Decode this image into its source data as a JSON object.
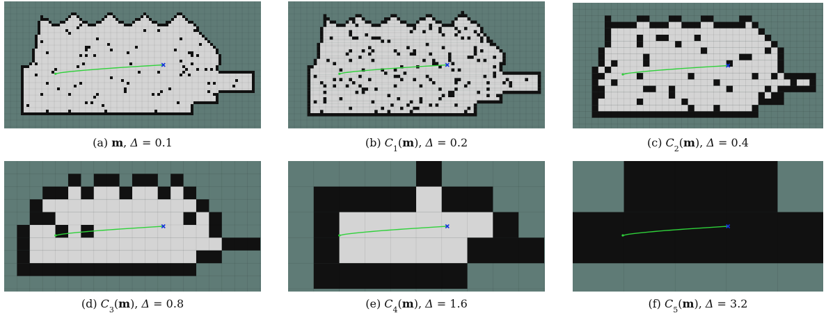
{
  "figure": {
    "panels": [
      {
        "caption": [
          {
            "text": "(a) "
          },
          {
            "text": "m",
            "style": "bold"
          },
          {
            "text": ", "
          },
          {
            "text": "Δ",
            "style": "italic"
          },
          {
            "text": " = 0.1"
          }
        ]
      },
      {
        "caption": [
          {
            "text": "(b) "
          },
          {
            "text": "C",
            "style": "italic"
          },
          {
            "text": "1",
            "style": "sub"
          },
          {
            "text": "("
          },
          {
            "text": "m",
            "style": "bold"
          },
          {
            "text": "), "
          },
          {
            "text": "Δ",
            "style": "italic"
          },
          {
            "text": " = 0.2"
          }
        ]
      },
      {
        "caption": [
          {
            "text": "(c) "
          },
          {
            "text": "C",
            "style": "italic"
          },
          {
            "text": "2",
            "style": "sub"
          },
          {
            "text": "("
          },
          {
            "text": "m",
            "style": "bold"
          },
          {
            "text": "), "
          },
          {
            "text": "Δ",
            "style": "italic"
          },
          {
            "text": " = 0.4"
          }
        ]
      },
      {
        "caption": [
          {
            "text": "(d) "
          },
          {
            "text": "C",
            "style": "italic"
          },
          {
            "text": "3",
            "style": "sub"
          },
          {
            "text": "("
          },
          {
            "text": "m",
            "style": "bold"
          },
          {
            "text": "), "
          },
          {
            "text": "Δ",
            "style": "italic"
          },
          {
            "text": " = 0.8"
          }
        ]
      },
      {
        "caption": [
          {
            "text": "(e) "
          },
          {
            "text": "C",
            "style": "italic"
          },
          {
            "text": "4",
            "style": "sub"
          },
          {
            "text": "("
          },
          {
            "text": "m",
            "style": "bold"
          },
          {
            "text": "), "
          },
          {
            "text": "Δ",
            "style": "italic"
          },
          {
            "text": " = 1.6"
          }
        ]
      },
      {
        "caption": [
          {
            "text": "(f) "
          },
          {
            "text": "C",
            "style": "italic"
          },
          {
            "text": "5",
            "style": "sub"
          },
          {
            "text": "("
          },
          {
            "text": "m",
            "style": "bold"
          },
          {
            "text": "), "
          },
          {
            "text": "Δ",
            "style": "italic"
          },
          {
            "text": " = 3.2"
          }
        ]
      }
    ]
  }
}
